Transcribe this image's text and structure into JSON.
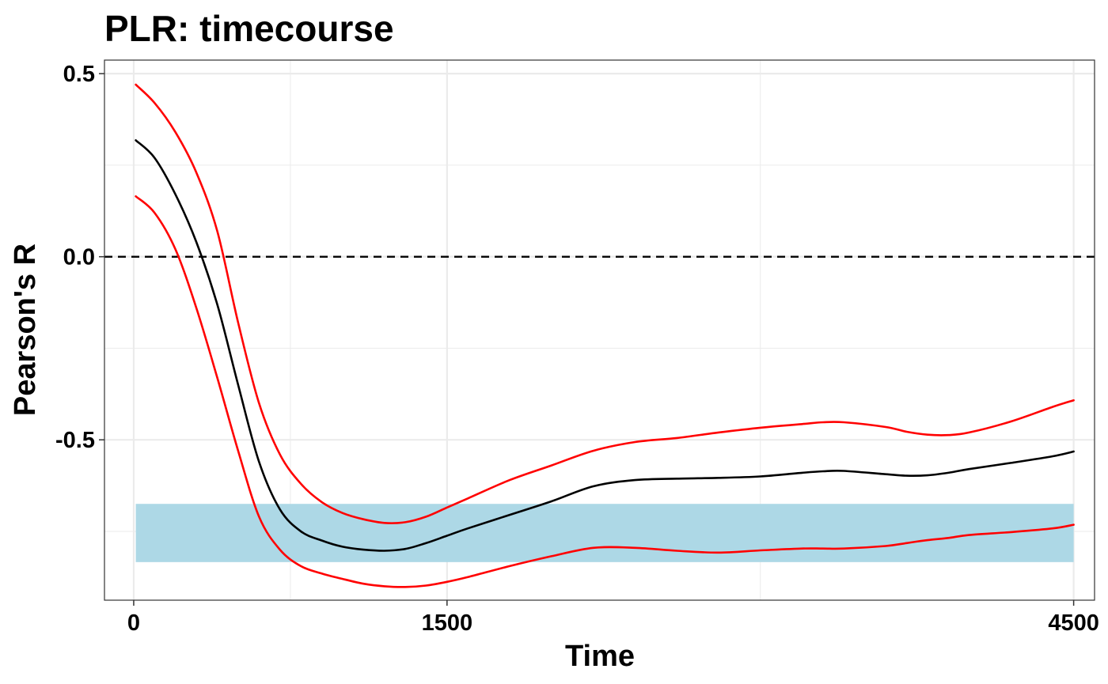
{
  "chart_data": {
    "type": "line",
    "title": "PLR: timecourse",
    "xlabel": "Time",
    "ylabel": "Pearson's R",
    "xlim": [
      -140,
      4600
    ],
    "ylim": [
      -0.938,
      0.537
    ],
    "x_major_ticks": [
      0,
      1500,
      4500
    ],
    "x_tick_labels": [
      "0",
      "1500",
      "4500"
    ],
    "x_minor_gridlines": [
      750,
      3000
    ],
    "y_major_ticks": [
      -0.5,
      0.0,
      0.5
    ],
    "y_tick_labels": [
      "-0.5",
      "0.0",
      "0.5"
    ],
    "y_minor_gridlines": [
      -0.75,
      -0.25,
      0.25
    ],
    "grid": true,
    "legend": "none",
    "reference_line": {
      "y": 0,
      "style": "dashed",
      "color": "#000000"
    },
    "highlight_band": {
      "x": [
        10,
        4500
      ],
      "y": [
        -0.834,
        -0.675
      ],
      "color": "#add8e6"
    },
    "series": [
      {
        "color": "#ff0000",
        "x": [
          10,
          100,
          200,
          300,
          400,
          500,
          600,
          700,
          800,
          900,
          1000,
          1100,
          1200,
          1300,
          1400,
          1500,
          1600,
          1800,
          2000,
          2200,
          2400,
          2600,
          2800,
          3000,
          3200,
          3300,
          3400,
          3600,
          3700,
          3800,
          3900,
          4000,
          4200,
          4400,
          4500
        ],
        "values": [
          0.47,
          0.42,
          0.34,
          0.23,
          0.07,
          -0.18,
          -0.4,
          -0.54,
          -0.62,
          -0.67,
          -0.7,
          -0.717,
          -0.727,
          -0.725,
          -0.71,
          -0.685,
          -0.66,
          -0.61,
          -0.57,
          -0.53,
          -0.506,
          -0.495,
          -0.48,
          -0.467,
          -0.457,
          -0.452,
          -0.452,
          -0.465,
          -0.478,
          -0.486,
          -0.487,
          -0.48,
          -0.45,
          -0.41,
          -0.392
        ]
      },
      {
        "color": "#000000",
        "x": [
          10,
          100,
          200,
          300,
          400,
          500,
          600,
          700,
          800,
          900,
          1000,
          1100,
          1200,
          1300,
          1400,
          1500,
          1600,
          1800,
          2000,
          2200,
          2400,
          2600,
          2800,
          3000,
          3200,
          3300,
          3400,
          3600,
          3700,
          3800,
          3900,
          4000,
          4200,
          4400,
          4500
        ],
        "values": [
          0.318,
          0.27,
          0.17,
          0.04,
          -0.13,
          -0.35,
          -0.56,
          -0.69,
          -0.75,
          -0.775,
          -0.792,
          -0.8,
          -0.803,
          -0.798,
          -0.782,
          -0.762,
          -0.742,
          -0.705,
          -0.668,
          -0.627,
          -0.61,
          -0.606,
          -0.604,
          -0.6,
          -0.59,
          -0.586,
          -0.585,
          -0.594,
          -0.598,
          -0.597,
          -0.59,
          -0.58,
          -0.563,
          -0.545,
          -0.532
        ]
      },
      {
        "color": "#ff0000",
        "x": [
          10,
          100,
          200,
          300,
          400,
          500,
          600,
          700,
          800,
          900,
          1000,
          1100,
          1200,
          1300,
          1400,
          1500,
          1600,
          1800,
          2000,
          2200,
          2400,
          2600,
          2800,
          3000,
          3200,
          3300,
          3400,
          3600,
          3700,
          3800,
          3900,
          4000,
          4200,
          4400,
          4500
        ],
        "values": [
          0.165,
          0.12,
          0.02,
          -0.14,
          -0.33,
          -0.53,
          -0.71,
          -0.8,
          -0.845,
          -0.865,
          -0.88,
          -0.893,
          -0.9,
          -0.902,
          -0.898,
          -0.888,
          -0.875,
          -0.845,
          -0.818,
          -0.795,
          -0.795,
          -0.803,
          -0.808,
          -0.802,
          -0.797,
          -0.797,
          -0.797,
          -0.79,
          -0.782,
          -0.774,
          -0.768,
          -0.76,
          -0.752,
          -0.742,
          -0.732
        ]
      }
    ]
  }
}
